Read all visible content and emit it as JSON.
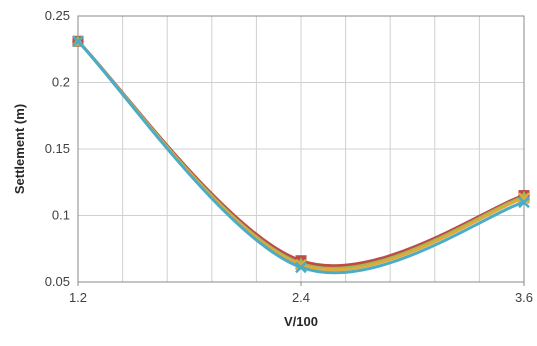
{
  "chart_data": {
    "type": "line",
    "title": "",
    "xlabel": "V/100",
    "ylabel": "Settlement (m)",
    "xlim": [
      1.2,
      3.6
    ],
    "ylim": [
      0.05,
      0.25
    ],
    "x_ticks": [
      "1.2",
      "2.4",
      "3.6"
    ],
    "y_ticks": [
      "0.05",
      "0.1",
      "0.15",
      "0.2",
      "0.25"
    ],
    "x_minor_gridlines": 10,
    "grid": true,
    "legend": "none",
    "smooth": true,
    "series": [
      {
        "color": "#4A7EBB",
        "marker": "diamond",
        "x": [
          1.2,
          2.4,
          3.6
        ],
        "y": [
          0.231,
          0.065,
          0.115
        ]
      },
      {
        "color": "#BE4B48",
        "marker": "square",
        "x": [
          1.2,
          2.4,
          3.6
        ],
        "y": [
          0.231,
          0.066,
          0.115
        ]
      },
      {
        "color": "#98B954",
        "marker": "triangle",
        "x": [
          1.2,
          2.4,
          3.6
        ],
        "y": [
          0.231,
          0.064,
          0.114
        ]
      },
      {
        "color": "#E0A93B",
        "marker": "x",
        "x": [
          1.2,
          2.4,
          3.6
        ],
        "y": [
          0.231,
          0.063,
          0.113
        ]
      },
      {
        "color": "#4BACC6",
        "marker": "x",
        "x": [
          1.2,
          2.4,
          3.6
        ],
        "y": [
          0.231,
          0.061,
          0.11
        ]
      }
    ]
  }
}
